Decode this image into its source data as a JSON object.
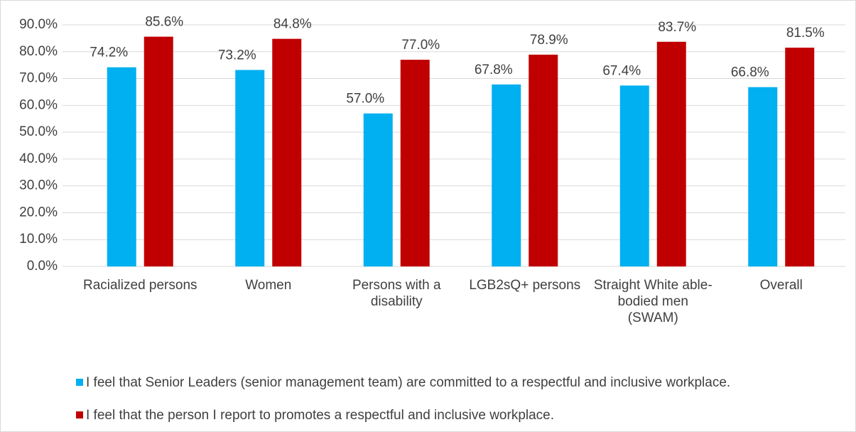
{
  "chart_data": {
    "type": "bar",
    "categories": [
      "Racialized persons",
      "Women",
      "Persons with a disability",
      "LGB2sQ+ persons",
      "Straight White able-bodied men (SWAM)",
      "Overall"
    ],
    "series": [
      {
        "name": "I feel that Senior Leaders (senior management team) are committed to a respectful and inclusive workplace.",
        "color": "#00b0f0",
        "values": [
          74.2,
          73.2,
          57.0,
          67.8,
          67.4,
          66.8
        ],
        "value_labels": [
          "74.2%",
          "73.2%",
          "57.0%",
          "67.8%",
          "67.4%",
          "66.8%"
        ]
      },
      {
        "name": "I feel that the person I report to promotes a respectful and inclusive workplace.",
        "color": "#c00000",
        "values": [
          85.6,
          84.8,
          77.0,
          78.9,
          83.7,
          81.5
        ],
        "value_labels": [
          "85.6%",
          "84.8%",
          "77.0%",
          "78.9%",
          "83.7%",
          "81.5%"
        ]
      }
    ],
    "ylim": [
      0,
      90
    ],
    "yticks": [
      {
        "value": 0,
        "label": "0.0%"
      },
      {
        "value": 10,
        "label": "10.0%"
      },
      {
        "value": 20,
        "label": "20.0%"
      },
      {
        "value": 30,
        "label": "30.0%"
      },
      {
        "value": 40,
        "label": "40.0%"
      },
      {
        "value": 50,
        "label": "50.0%"
      },
      {
        "value": 60,
        "label": "60.0%"
      },
      {
        "value": 70,
        "label": "70.0%"
      },
      {
        "value": 80,
        "label": "80.0%"
      },
      {
        "value": 90,
        "label": "90.0%"
      }
    ],
    "grid": true,
    "legend": "bottom"
  }
}
